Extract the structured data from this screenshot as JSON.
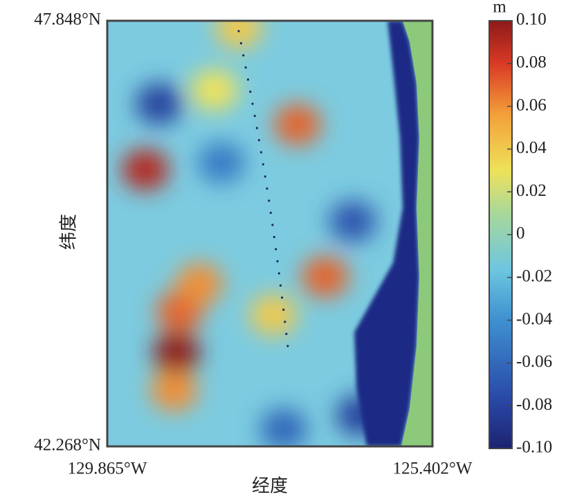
{
  "chart_data": {
    "type": "heatmap",
    "xlabel": "经度",
    "ylabel": "纬度",
    "xlim": [
      -129.865,
      -125.402
    ],
    "ylim": [
      42.268,
      47.848
    ],
    "xticks": [
      {
        "value": -129.865,
        "label": "129.865°W"
      },
      {
        "value": -125.402,
        "label": "125.402°W"
      }
    ],
    "yticks": [
      {
        "value": 42.268,
        "label": "42.268°N"
      },
      {
        "value": 47.848,
        "label": "47.848°N"
      }
    ],
    "colorbar": {
      "label": "m",
      "colormap": "jet",
      "clim": [
        -0.1,
        0.1
      ],
      "ticks": [
        {
          "value": 0.1,
          "label": "0.10"
        },
        0.08,
        0.06,
        0.04,
        0.02,
        0,
        -0.02,
        -0.04,
        -0.06,
        -0.08,
        {
          "value": -0.1,
          "label": "-0.10"
        }
      ]
    },
    "points": {
      "lon": [
        -129.343,
        -128.915,
        -128.868,
        -128.95,
        -128.6,
        -127.254,
        -126.874,
        -127.586,
        -129.153,
        -128.298,
        -126.494,
        -126.399,
        -127.444,
        -128.393,
        -128.061
      ],
      "lat": [
        45.897,
        43.493,
        44.037,
        43.0,
        44.4,
        46.487,
        44.491,
        43.992,
        46.759,
        45.988,
        45.217,
        42.676,
        42.495,
        46.941,
        47.757
      ],
      "values": [
        0.09,
        0.1,
        0.07,
        0.06,
        0.06,
        0.07,
        0.07,
        0.04,
        -0.08,
        -0.05,
        -0.07,
        -0.08,
        -0.06,
        0.03,
        0.04
      ]
    }
  }
}
